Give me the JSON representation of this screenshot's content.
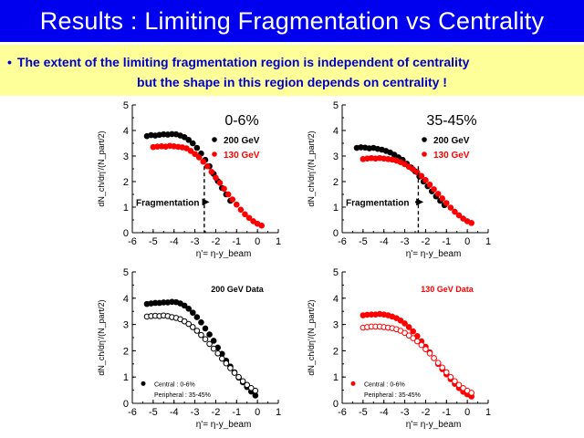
{
  "slide": {
    "title": "Results : Limiting Fragmentation vs Centrality",
    "bullet_line1": "The extent of the limiting fragmentation region is independent of centrality",
    "bullet_line2": "but the shape in this region depends on centrality !",
    "colors": {
      "title_bg": "#0000ee",
      "bullet_bg": "#ffff99",
      "bullet_text": "#0000cc",
      "red": "#ff0000",
      "black": "#000000"
    }
  },
  "chart_data": [
    {
      "type": "scatter",
      "title": "0-6%",
      "xlabel": "η'= η-y_beam",
      "ylabel": "dN_ch/dη'/(N_part/2)",
      "xlim": [
        -6,
        1
      ],
      "ylim": [
        0,
        5
      ],
      "xticks": [
        "-6",
        "-5",
        "-4",
        "-3",
        "-2",
        "-1",
        "0",
        "1"
      ],
      "yticks": [
        "0",
        "1",
        "2",
        "3",
        "4",
        "5"
      ],
      "annotation": "Fragmentation",
      "arrow_end_x": -2.3,
      "dashed_x": -2.55,
      "series": [
        {
          "name": "200 GeV",
          "color": "#000000",
          "filled": true,
          "x": [
            -5.3,
            -5.1,
            -4.9,
            -4.7,
            -4.5,
            -4.3,
            -4.1,
            -3.9,
            -3.7,
            -3.5,
            -3.3,
            -3.1,
            -2.9,
            -2.7,
            -2.5,
            -2.3,
            -2.1,
            -1.9,
            -1.7,
            -1.5,
            -1.3
          ],
          "y": [
            3.78,
            3.82,
            3.8,
            3.83,
            3.85,
            3.84,
            3.86,
            3.85,
            3.8,
            3.74,
            3.63,
            3.5,
            3.32,
            3.1,
            2.85,
            2.6,
            2.3,
            2.02,
            1.75,
            1.5,
            1.25
          ]
        },
        {
          "name": "130 GeV",
          "color": "#ff0000",
          "filled": true,
          "x": [
            -5.0,
            -4.8,
            -4.6,
            -4.4,
            -4.2,
            -4.0,
            -3.8,
            -3.6,
            -3.4,
            -3.2,
            -3.0,
            -2.8,
            -2.6,
            -2.4,
            -2.2,
            -2.0,
            -1.8,
            -1.6,
            -1.4,
            -1.2,
            -1.0,
            -0.8,
            -0.6,
            -0.4,
            -0.2,
            0.0,
            0.2
          ],
          "y": [
            3.35,
            3.37,
            3.38,
            3.37,
            3.4,
            3.38,
            3.36,
            3.34,
            3.3,
            3.2,
            3.08,
            2.95,
            2.78,
            2.6,
            2.38,
            2.15,
            1.95,
            1.72,
            1.5,
            1.3,
            1.1,
            0.9,
            0.72,
            0.58,
            0.45,
            0.35,
            0.28
          ]
        }
      ]
    },
    {
      "type": "scatter",
      "title": "35-45%",
      "xlabel": "η'= η-y_beam",
      "ylabel": "dN_ch/dη'/(N_part/2)",
      "xlim": [
        -6,
        1
      ],
      "ylim": [
        0,
        5
      ],
      "xticks": [
        "-6",
        "-5",
        "-4",
        "-3",
        "-2",
        "-1",
        "0",
        "1"
      ],
      "yticks": [
        "0",
        "1",
        "2",
        "3",
        "4",
        "5"
      ],
      "annotation": "Fragmentation",
      "arrow_end_x": -2.1,
      "dashed_x": -2.35,
      "series": [
        {
          "name": "200 GeV",
          "color": "#000000",
          "filled": true,
          "x": [
            -5.3,
            -5.1,
            -4.9,
            -4.7,
            -4.5,
            -4.3,
            -4.1,
            -3.9,
            -3.7,
            -3.5,
            -3.3,
            -3.1,
            -2.9,
            -2.7,
            -2.5,
            -2.3,
            -2.1,
            -1.9,
            -1.7,
            -1.5,
            -1.3,
            -1.1
          ],
          "y": [
            3.32,
            3.34,
            3.33,
            3.3,
            3.32,
            3.28,
            3.25,
            3.2,
            3.14,
            3.05,
            2.95,
            2.85,
            2.7,
            2.55,
            2.4,
            2.2,
            2.0,
            1.82,
            1.62,
            1.42,
            1.25,
            1.08
          ]
        },
        {
          "name": "130 GeV",
          "color": "#ff0000",
          "filled": true,
          "x": [
            -5.0,
            -4.8,
            -4.6,
            -4.4,
            -4.2,
            -4.0,
            -3.8,
            -3.6,
            -3.4,
            -3.2,
            -3.0,
            -2.8,
            -2.6,
            -2.4,
            -2.2,
            -2.0,
            -1.8,
            -1.6,
            -1.4,
            -1.2,
            -1.0,
            -0.8,
            -0.6,
            -0.4,
            -0.2,
            0.0,
            0.2
          ],
          "y": [
            2.88,
            2.9,
            2.92,
            2.9,
            2.92,
            2.9,
            2.88,
            2.86,
            2.82,
            2.76,
            2.68,
            2.58,
            2.48,
            2.36,
            2.22,
            2.06,
            1.88,
            1.7,
            1.52,
            1.34,
            1.16,
            0.98,
            0.82,
            0.68,
            0.55,
            0.45,
            0.38
          ]
        }
      ]
    },
    {
      "type": "scatter",
      "title": "200 GeV Data",
      "xlabel": "η'= η-y_beam",
      "ylabel": "dN_ch/dη'/(N_part/2)",
      "xlim": [
        -6,
        1
      ],
      "ylim": [
        0,
        5
      ],
      "xticks": [
        "-6",
        "-5",
        "-4",
        "-3",
        "-2",
        "-1",
        "0",
        "1"
      ],
      "yticks": [
        "0",
        "1",
        "2",
        "3",
        "4",
        "5"
      ],
      "legend_central": "Central : 0-6%",
      "legend_peripheral": "Peripheral : 35-45%",
      "series": [
        {
          "name": "Central",
          "color": "#000000",
          "filled": true,
          "x": [
            -5.3,
            -5.1,
            -4.9,
            -4.7,
            -4.5,
            -4.3,
            -4.1,
            -3.9,
            -3.7,
            -3.5,
            -3.3,
            -3.1,
            -2.9,
            -2.7,
            -2.5,
            -2.3,
            -2.1,
            -1.9,
            -1.7,
            -1.5,
            -1.3,
            -1.1,
            -0.9,
            -0.7,
            -0.5,
            -0.3,
            -0.1
          ],
          "y": [
            3.78,
            3.8,
            3.82,
            3.82,
            3.84,
            3.84,
            3.86,
            3.85,
            3.8,
            3.72,
            3.6,
            3.45,
            3.28,
            3.08,
            2.85,
            2.62,
            2.38,
            2.12,
            1.88,
            1.62,
            1.4,
            1.18,
            0.98,
            0.8,
            0.62,
            0.45,
            0.3
          ]
        },
        {
          "name": "Peripheral",
          "color": "#000000",
          "filled": false,
          "x": [
            -5.3,
            -5.1,
            -4.9,
            -4.7,
            -4.5,
            -4.3,
            -4.1,
            -3.9,
            -3.7,
            -3.5,
            -3.3,
            -3.1,
            -2.9,
            -2.7,
            -2.5,
            -2.3,
            -2.1,
            -1.9,
            -1.7,
            -1.5,
            -1.3,
            -1.1,
            -0.9,
            -0.7,
            -0.5,
            -0.3,
            -0.1
          ],
          "y": [
            3.3,
            3.32,
            3.33,
            3.32,
            3.34,
            3.32,
            3.28,
            3.25,
            3.2,
            3.12,
            3.02,
            2.9,
            2.76,
            2.6,
            2.44,
            2.26,
            2.08,
            1.9,
            1.7,
            1.52,
            1.34,
            1.16,
            1.0,
            0.84,
            0.7,
            0.58,
            0.48
          ]
        }
      ]
    },
    {
      "type": "scatter",
      "title": "130 GeV Data",
      "xlabel": "η'= η-y_beam",
      "ylabel": "dN_ch/dη'/(N_part/2)",
      "xlim": [
        -6,
        1
      ],
      "ylim": [
        0,
        5
      ],
      "xticks": [
        "-6",
        "-5",
        "-4",
        "-3",
        "-2",
        "-1",
        "0",
        "1"
      ],
      "yticks": [
        "0",
        "1",
        "2",
        "3",
        "4",
        "5"
      ],
      "legend_central": "Central : 0-6%",
      "legend_peripheral": "Peripheral : 35-45%",
      "series": [
        {
          "name": "Central",
          "color": "#ff0000",
          "filled": true,
          "x": [
            -5.0,
            -4.8,
            -4.6,
            -4.4,
            -4.2,
            -4.0,
            -3.8,
            -3.6,
            -3.4,
            -3.2,
            -3.0,
            -2.8,
            -2.6,
            -2.4,
            -2.2,
            -2.0,
            -1.8,
            -1.6,
            -1.4,
            -1.2,
            -1.0,
            -0.8,
            -0.6,
            -0.4,
            -0.2,
            0.0,
            0.2
          ],
          "y": [
            3.35,
            3.37,
            3.38,
            3.38,
            3.4,
            3.38,
            3.35,
            3.3,
            3.24,
            3.15,
            3.04,
            2.9,
            2.74,
            2.56,
            2.36,
            2.15,
            1.94,
            1.72,
            1.5,
            1.3,
            1.1,
            0.92,
            0.74,
            0.58,
            0.44,
            0.34,
            0.26
          ]
        },
        {
          "name": "Peripheral",
          "color": "#ff0000",
          "filled": false,
          "x": [
            -5.0,
            -4.8,
            -4.6,
            -4.4,
            -4.2,
            -4.0,
            -3.8,
            -3.6,
            -3.4,
            -3.2,
            -3.0,
            -2.8,
            -2.6,
            -2.4,
            -2.2,
            -2.0,
            -1.8,
            -1.6,
            -1.4,
            -1.2,
            -1.0,
            -0.8,
            -0.6,
            -0.4,
            -0.2,
            0.0,
            0.2
          ],
          "y": [
            2.88,
            2.9,
            2.92,
            2.92,
            2.92,
            2.9,
            2.88,
            2.86,
            2.82,
            2.76,
            2.68,
            2.58,
            2.48,
            2.36,
            2.22,
            2.06,
            1.9,
            1.72,
            1.54,
            1.36,
            1.18,
            1.0,
            0.84,
            0.7,
            0.58,
            0.48,
            0.4
          ]
        }
      ]
    }
  ]
}
